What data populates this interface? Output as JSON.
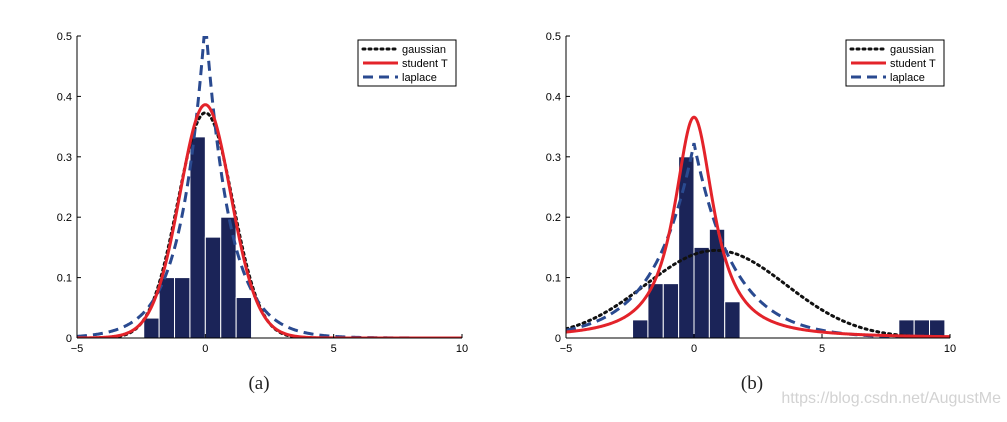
{
  "colors": {
    "bars": "#1b2458",
    "gaussian": "#111111",
    "student": "#e3232a",
    "laplace": "#2a4a90"
  },
  "chart_data": [
    {
      "type": "bar",
      "caption": "(a)",
      "xlim": [
        -5,
        10
      ],
      "ylim": [
        0,
        0.5
      ],
      "xticks": [
        "−5",
        "0",
        "5",
        "10"
      ],
      "yticks": [
        "0",
        "0.1",
        "0.2",
        "0.3",
        "0.4",
        "0.5"
      ],
      "legend_position": "top-right",
      "bins": {
        "width": 0.6,
        "centers": [
          -2.1,
          -1.5,
          -0.9,
          -0.3,
          0.3,
          0.9,
          1.5,
          2.1
        ],
        "values": [
          0.033,
          0.1,
          0.1,
          0.333,
          0.167,
          0.2,
          0.067,
          0
        ]
      },
      "series": [
        {
          "name": "gaussian",
          "style": "dotted",
          "values_description": ""
        },
        {
          "name": "student T",
          "style": "solid"
        },
        {
          "name": "laplace",
          "style": "dashed"
        }
      ],
      "fits": {
        "gaussian": {
          "mu": 0.0,
          "sigma": 1.07
        },
        "student": {
          "mu": 0.0,
          "sigma": 1.02,
          "nu": 20
        },
        "laplace": {
          "mu": 0.0,
          "b": 0.95
        }
      }
    },
    {
      "type": "bar",
      "caption": "(b)",
      "xlim": [
        -5,
        10
      ],
      "ylim": [
        0,
        0.5
      ],
      "xticks": [
        "−5",
        "0",
        "5",
        "10"
      ],
      "yticks": [
        "0",
        "0.1",
        "0.2",
        "0.3",
        "0.4",
        "0.5"
      ],
      "legend_position": "top-right",
      "bins": {
        "width": 0.6,
        "centers": [
          -2.1,
          -1.5,
          -0.9,
          -0.3,
          0.3,
          0.9,
          1.5,
          8.3,
          8.9,
          9.5
        ],
        "values": [
          0.03,
          0.09,
          0.09,
          0.3,
          0.15,
          0.18,
          0.06,
          0.03,
          0.03,
          0.03
        ]
      },
      "series": [
        {
          "name": "gaussian",
          "style": "dotted"
        },
        {
          "name": "student T",
          "style": "solid"
        },
        {
          "name": "laplace",
          "style": "dashed"
        }
      ],
      "fits": {
        "gaussian": {
          "mu": 0.85,
          "sigma": 2.75
        },
        "student": {
          "mu": 0.0,
          "sigma": 0.9,
          "nu": 1.2
        },
        "laplace": {
          "mu": 0.0,
          "b": 1.55
        }
      }
    }
  ],
  "watermark": "https://blog.csdn.net/AugustMe"
}
